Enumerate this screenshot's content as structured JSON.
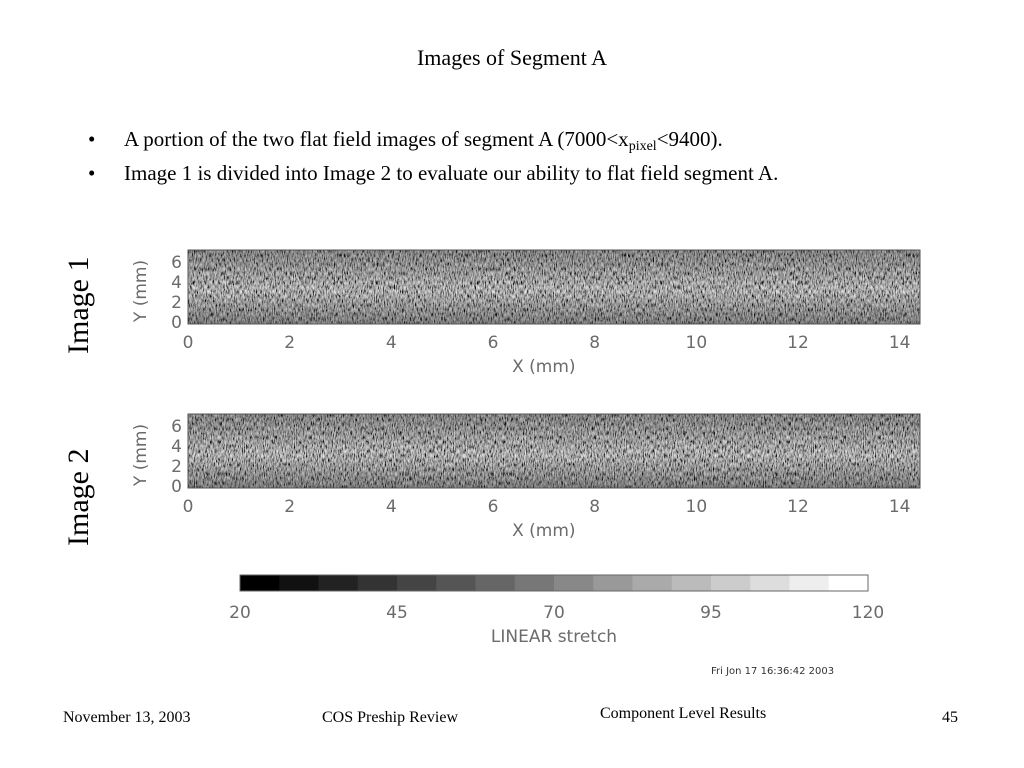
{
  "slide": {
    "title": "Images of Segment A",
    "bullets": [
      {
        "pre": "A portion of the two flat field images of segment A (7000<x",
        "sub": "pixel",
        "post": "<9400)."
      },
      {
        "pre": "Image 1 is divided into Image 2 to evaluate our ability to flat field segment A.",
        "sub": "",
        "post": ""
      }
    ]
  },
  "figure": {
    "panels": [
      {
        "label": "Image 1",
        "xlabel": "X (mm)",
        "ylabel": "Y (mm)",
        "x_ticks": [
          "0",
          "2",
          "4",
          "6",
          "8",
          "10",
          "12",
          "14"
        ],
        "y_ticks": [
          "0",
          "2",
          "4",
          "6"
        ],
        "xlim": [
          0,
          14.4
        ],
        "ylim": [
          -0.2,
          7.2
        ]
      },
      {
        "label": "Image 2",
        "xlabel": "X (mm)",
        "ylabel": "Y (mm)",
        "x_ticks": [
          "0",
          "2",
          "4",
          "6",
          "8",
          "10",
          "12",
          "14"
        ],
        "y_ticks": [
          "0",
          "2",
          "4",
          "6"
        ],
        "xlim": [
          0,
          14.4
        ],
        "ylim": [
          -0.2,
          7.2
        ]
      }
    ],
    "colorbar": {
      "ticks": [
        "20",
        "45",
        "70",
        "95",
        "120"
      ],
      "range": [
        20,
        120
      ],
      "label": "LINEAR stretch",
      "levels": 16
    },
    "timestamp": "Fri Jon 17 16:36:42 2003"
  },
  "footer": {
    "date": "November 13, 2003",
    "event": "COS Preship Review",
    "section": "Component Level Results",
    "page": "45"
  }
}
